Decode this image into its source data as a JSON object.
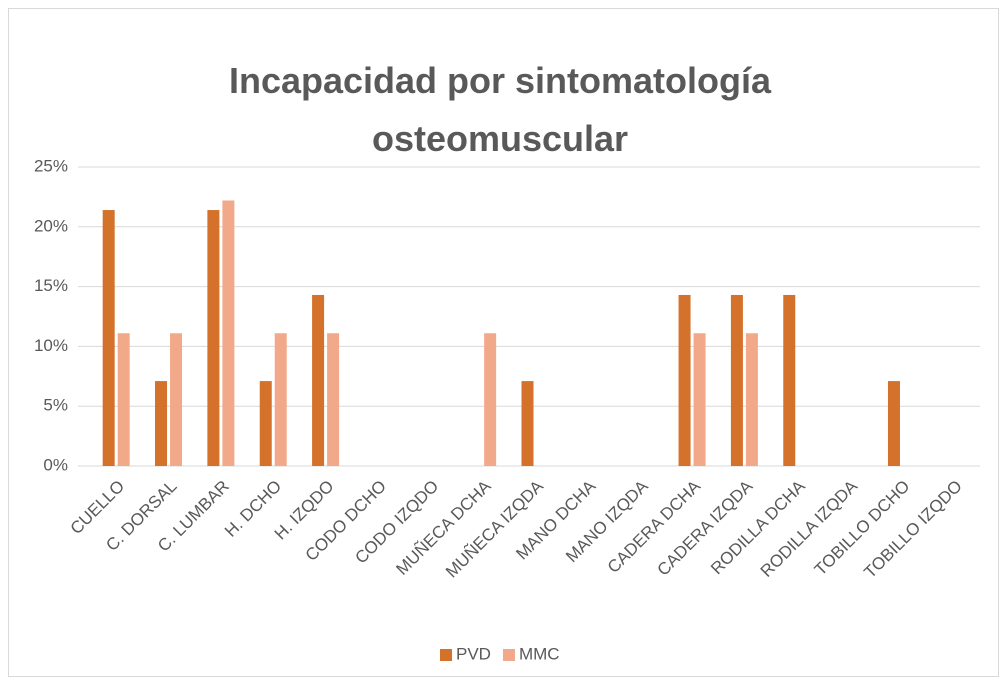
{
  "chart_data": {
    "type": "bar",
    "title": "Incapacidad por sintomatología osteomuscular",
    "categories": [
      "CUELLO",
      "C. DORSAL",
      "C. LUMBAR",
      "H. DCHO",
      "H. IZQDO",
      "CODO DCHO",
      "CODO IZQDO",
      "MUÑECA DCHA",
      "MUÑECA IZQDA",
      "MANO DCHA",
      "MANO IZQDA",
      "CADERA DCHA",
      "CADERA IZQDA",
      "RODILLA DCHA",
      "RODILLA IZQDA",
      "TOBILLO DCHO",
      "TOBILLO IZQDO"
    ],
    "series": [
      {
        "name": "PVD",
        "color": "#D4712B",
        "values": [
          21.4,
          7.1,
          21.4,
          7.1,
          14.3,
          0,
          0,
          0,
          7.1,
          0,
          0,
          14.3,
          14.3,
          14.3,
          0,
          7.1,
          0
        ]
      },
      {
        "name": "MMC",
        "color": "#F2A98A",
        "values": [
          11.1,
          11.1,
          22.2,
          11.1,
          11.1,
          0,
          0,
          11.1,
          0,
          0,
          0,
          11.1,
          11.1,
          0,
          0,
          0,
          0
        ]
      }
    ],
    "ylim": [
      0,
      25
    ],
    "yticks": [
      {
        "value": 0,
        "label": "0%"
      },
      {
        "value": 5,
        "label": "5%"
      },
      {
        "value": 10,
        "label": "10%"
      },
      {
        "value": 15,
        "label": "15%"
      },
      {
        "value": 20,
        "label": "20%"
      },
      {
        "value": 25,
        "label": "25%"
      }
    ],
    "grid": true,
    "legend": "bottom"
  }
}
